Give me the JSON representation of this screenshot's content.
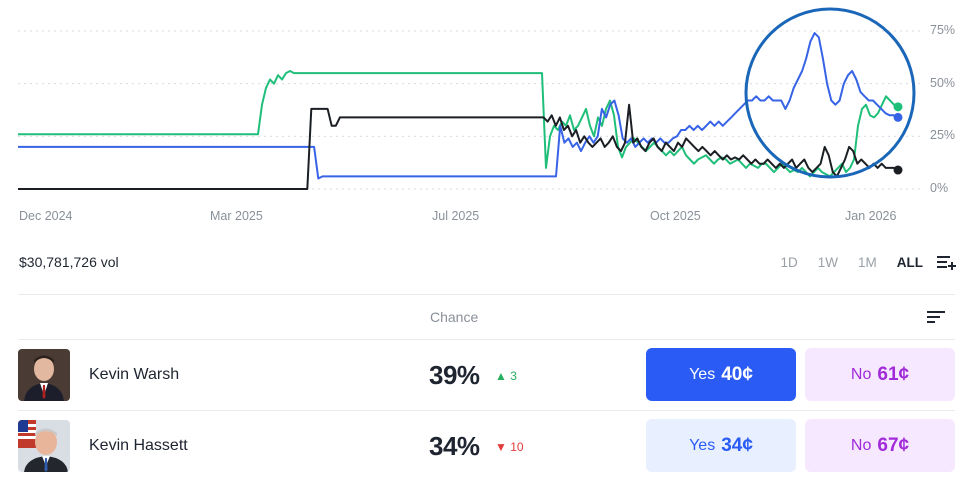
{
  "chart_data": {
    "type": "line",
    "x_ticks": [
      "Dec 2024",
      "Mar 2025",
      "Jul 2025",
      "Oct 2025",
      "Jan 2026"
    ],
    "y_ticks": [
      "75%",
      "50%",
      "25%",
      "0%"
    ],
    "ylim": [
      0,
      75
    ],
    "grid": true,
    "annotation": "circle highlighting recent period",
    "series": [
      {
        "color": "#1fbf7a",
        "values": [
          26,
          26,
          26,
          26,
          26,
          26,
          26,
          26,
          26,
          26,
          26,
          26,
          26,
          26,
          26,
          26,
          26,
          26,
          26,
          26,
          26,
          26,
          26,
          26,
          26,
          26,
          26,
          26,
          26,
          26,
          26,
          26,
          26,
          26,
          26,
          26,
          26,
          26,
          26,
          26,
          26,
          26,
          26,
          26,
          26,
          26,
          26,
          26,
          26,
          26,
          26,
          26,
          26,
          26,
          26,
          26,
          26,
          26,
          26,
          26,
          26,
          40,
          48,
          52,
          50,
          54,
          52,
          55,
          56,
          55,
          55,
          55,
          55,
          55,
          55,
          55,
          55,
          55,
          55,
          55,
          55,
          55,
          55,
          55,
          55,
          55,
          55,
          55,
          55,
          55,
          55,
          55,
          55,
          55,
          55,
          55,
          55,
          55,
          55,
          55,
          55,
          55,
          55,
          55,
          55,
          55,
          55,
          55,
          55,
          55,
          55,
          55,
          55,
          55,
          55,
          55,
          55,
          55,
          55,
          55,
          55,
          55,
          55,
          55,
          55,
          55,
          55,
          55,
          55,
          55,
          55,
          55,
          10,
          25,
          30,
          28,
          32,
          30,
          35,
          28,
          30,
          34,
          38,
          30,
          25,
          34,
          30,
          38,
          42,
          35,
          20,
          15,
          20,
          22,
          24,
          22,
          20,
          18,
          20,
          22,
          20,
          18,
          16,
          18,
          16,
          18,
          20,
          16,
          14,
          12,
          14,
          15,
          16,
          14,
          12,
          14,
          15,
          14,
          12,
          13,
          14,
          12,
          10,
          12,
          11,
          10,
          12,
          12,
          10,
          8,
          10,
          12,
          10,
          8,
          9,
          8,
          10,
          8,
          6,
          8,
          10,
          8,
          7,
          6,
          8,
          10,
          12,
          8,
          10,
          14,
          30,
          38,
          40,
          35,
          34,
          36,
          40,
          44,
          42,
          40,
          39
        ]
      },
      {
        "color": "#3763e6",
        "values": [
          20,
          20,
          20,
          20,
          20,
          20,
          20,
          20,
          20,
          20,
          20,
          20,
          20,
          20,
          20,
          20,
          20,
          20,
          20,
          20,
          20,
          20,
          20,
          20,
          20,
          20,
          20,
          20,
          20,
          20,
          20,
          20,
          20,
          20,
          20,
          20,
          20,
          20,
          20,
          20,
          20,
          20,
          20,
          20,
          20,
          20,
          20,
          20,
          20,
          20,
          20,
          20,
          20,
          20,
          20,
          20,
          20,
          20,
          20,
          20,
          20,
          20,
          20,
          20,
          20,
          20,
          20,
          20,
          20,
          20,
          20,
          20,
          5,
          6,
          6,
          6,
          6,
          6,
          6,
          6,
          6,
          6,
          6,
          6,
          6,
          6,
          6,
          6,
          6,
          6,
          6,
          6,
          6,
          6,
          6,
          6,
          6,
          6,
          6,
          6,
          6,
          6,
          6,
          6,
          6,
          6,
          6,
          6,
          6,
          6,
          6,
          6,
          6,
          6,
          6,
          6,
          6,
          6,
          6,
          6,
          6,
          6,
          6,
          6,
          6,
          6,
          6,
          6,
          6,
          6,
          30,
          22,
          24,
          20,
          22,
          18,
          22,
          25,
          22,
          25,
          38,
          34,
          40,
          42,
          35,
          24,
          22,
          24,
          20,
          22,
          24,
          22,
          24,
          22,
          24,
          22,
          22,
          24,
          25,
          28,
          28,
          30,
          28,
          30,
          28,
          30,
          32,
          30,
          32,
          30,
          32,
          34,
          36,
          38,
          40,
          42,
          42,
          44,
          42,
          42,
          44,
          42,
          42,
          42,
          38,
          42,
          48,
          52,
          56,
          62,
          70,
          74,
          72,
          62,
          50,
          42,
          40,
          42,
          50,
          54,
          56,
          52,
          46,
          44,
          42,
          42,
          40,
          38,
          36,
          35,
          35,
          34
        ]
      },
      {
        "color": "#1b1f24",
        "values": [
          0,
          0,
          0,
          0,
          0,
          0,
          0,
          0,
          0,
          0,
          0,
          0,
          0,
          0,
          0,
          0,
          0,
          0,
          0,
          0,
          0,
          0,
          0,
          0,
          0,
          0,
          0,
          0,
          0,
          0,
          0,
          0,
          0,
          0,
          0,
          0,
          0,
          0,
          0,
          0,
          0,
          0,
          0,
          0,
          0,
          0,
          0,
          0,
          0,
          0,
          0,
          0,
          0,
          0,
          0,
          0,
          0,
          0,
          0,
          0,
          0,
          0,
          0,
          0,
          0,
          0,
          0,
          0,
          0,
          0,
          0,
          0,
          38,
          38,
          38,
          38,
          38,
          30,
          30,
          34,
          34,
          34,
          34,
          34,
          34,
          34,
          34,
          34,
          34,
          34,
          34,
          34,
          34,
          34,
          34,
          34,
          34,
          34,
          34,
          34,
          34,
          34,
          34,
          34,
          34,
          34,
          34,
          34,
          34,
          34,
          34,
          34,
          34,
          34,
          34,
          34,
          34,
          34,
          34,
          34,
          34,
          34,
          34,
          34,
          34,
          34,
          34,
          34,
          34,
          34,
          32,
          35,
          30,
          34,
          28,
          30,
          25,
          28,
          22,
          25,
          22,
          20,
          22,
          24,
          20,
          22,
          25,
          20,
          18,
          22,
          40,
          22,
          24,
          20,
          18,
          22,
          24,
          20,
          18,
          22,
          20,
          18,
          22,
          20,
          24,
          22,
          20,
          18,
          20,
          18,
          16,
          18,
          16,
          14,
          16,
          14,
          15,
          14,
          16,
          14,
          12,
          14,
          12,
          12,
          14,
          12,
          10,
          12,
          10,
          12,
          14,
          10,
          12,
          14,
          10,
          8,
          10,
          12,
          20,
          16,
          8,
          6,
          10,
          14,
          20,
          18,
          12,
          14,
          12,
          10,
          12,
          10,
          12,
          10,
          10,
          10,
          9
        ]
      }
    ]
  },
  "volume": "$30,781,726 vol",
  "ranges": [
    "1D",
    "1W",
    "1M",
    "ALL"
  ],
  "active_range": "ALL",
  "table": {
    "chance_header": "Chance",
    "rows": [
      {
        "name": "Kevin Warsh",
        "chance": "39%",
        "change": "3",
        "change_dir": "up",
        "yes_label": "Yes",
        "yes_price": "40¢",
        "no_label": "No",
        "no_price": "61¢"
      },
      {
        "name": "Kevin Hassett",
        "chance": "34%",
        "change": "10",
        "change_dir": "down",
        "yes_label": "Yes",
        "yes_price": "34¢",
        "no_label": "No",
        "no_price": "67¢"
      }
    ]
  },
  "icons": {
    "filter": "add-filter-icon",
    "sort": "sort-icon",
    "up": "triangle-up-icon",
    "down": "triangle-down-icon"
  }
}
